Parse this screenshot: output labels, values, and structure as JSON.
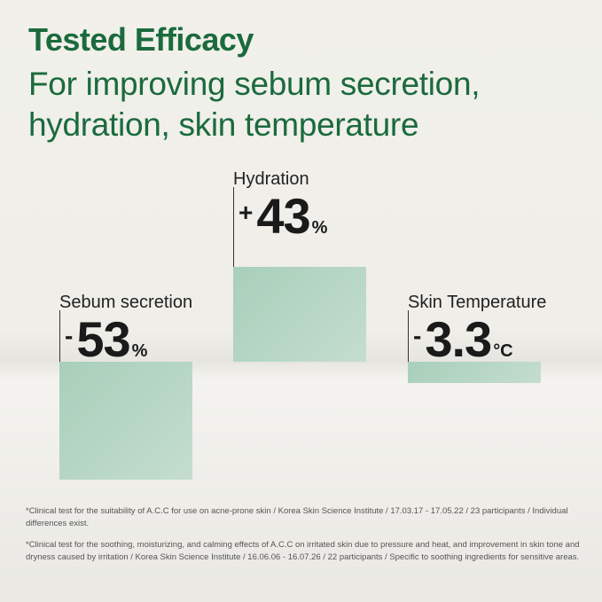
{
  "header": {
    "title": "Tested Efficacy",
    "subtitle_lines": [
      "For improving sebum secretion,",
      "hydration, skin temperature"
    ]
  },
  "chart_data": {
    "type": "bar",
    "categories": [
      "Sebum secretion",
      "Hydration",
      "Skin Temperature"
    ],
    "values": [
      -53,
      43,
      -3.3
    ],
    "labels": [
      {
        "sign": "-",
        "number": "53",
        "unit": "%"
      },
      {
        "sign": "+",
        "number": "43",
        "unit": "%"
      },
      {
        "sign": "-",
        "number": "3.3",
        "unit": "°C"
      }
    ],
    "bar_color": "#a8cfba"
  },
  "footnotes": [
    "*Clinical test for the suitability of A.C.C for use on acne-prone skin / Korea Skin Science Institute / 17.03.17 - 17.05.22 / 23 participants / Individual differences exist.",
    "*Clinical test for the soothing, moisturizing, and calming effects of A.C.C on irritated skin due to pressure and heat, and improvement in skin tone and dryness caused by irritation / Korea Skin Science Institute / 16.06.06 - 16.07.26 / 22 participants / Specific to soothing ingredients for sensitive areas."
  ]
}
